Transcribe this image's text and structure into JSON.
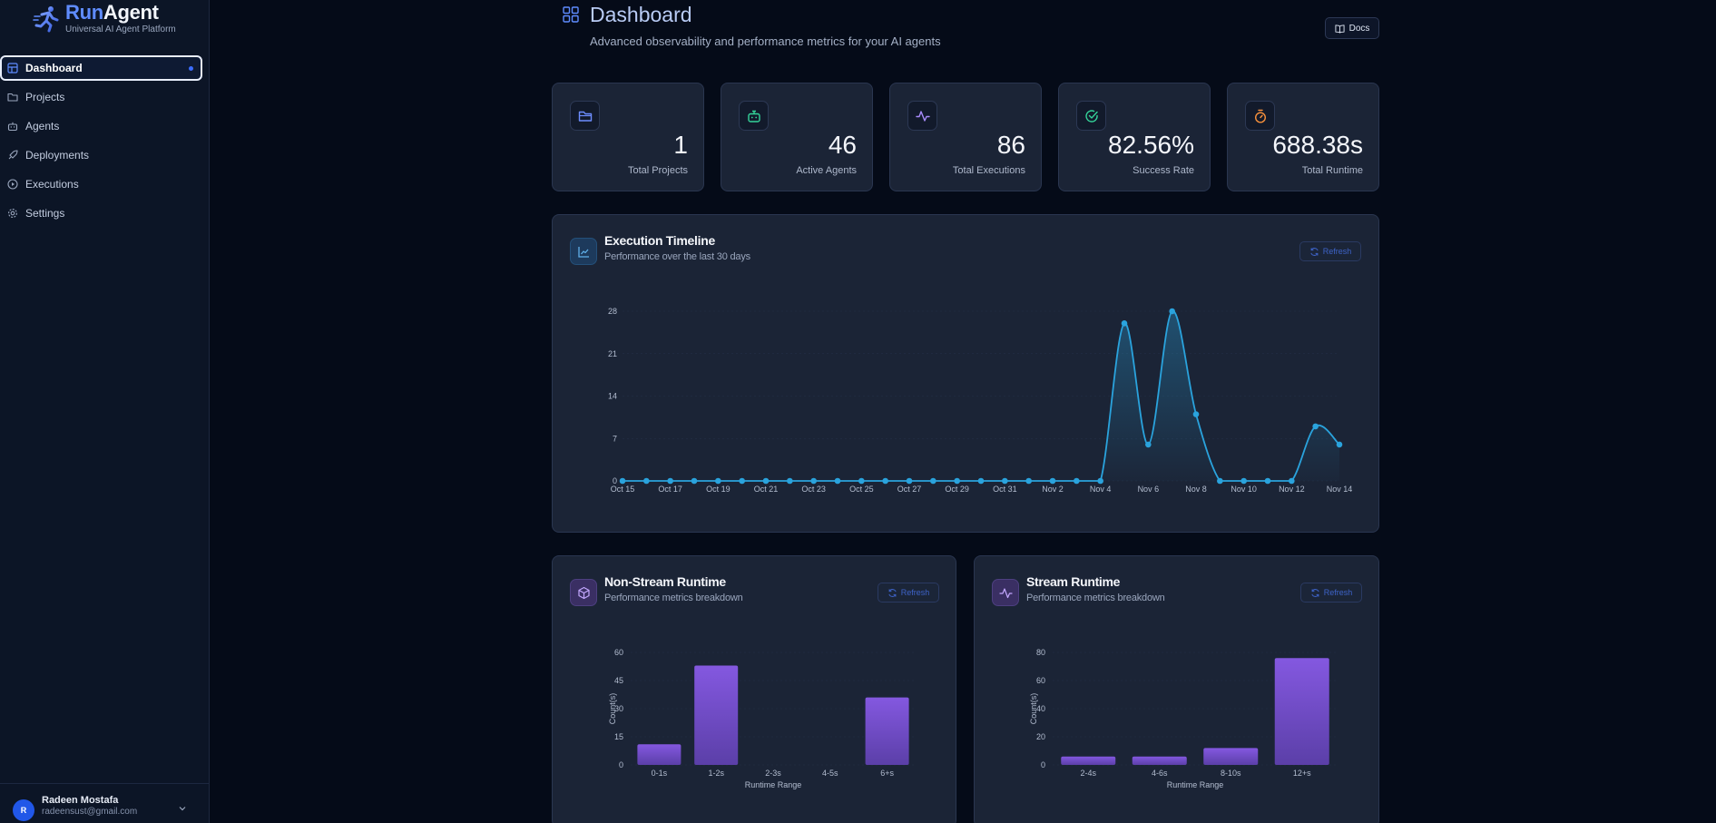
{
  "brand": {
    "name_part1": "Run",
    "name_part2": "Agent",
    "subtitle": "Universal AI Agent Platform"
  },
  "sidebar": {
    "items": [
      {
        "label": "Dashboard",
        "icon": "dashboard-icon",
        "active": true
      },
      {
        "label": "Projects",
        "icon": "folder-icon"
      },
      {
        "label": "Agents",
        "icon": "bot-icon"
      },
      {
        "label": "Deployments",
        "icon": "rocket-icon"
      },
      {
        "label": "Executions",
        "icon": "play-circle-icon"
      },
      {
        "label": "Settings",
        "icon": "gear-icon"
      }
    ],
    "user": {
      "initial": "R",
      "name": "Radeen Mostafa",
      "email": "radeensust@gmail.com"
    }
  },
  "header": {
    "title": "Dashboard",
    "subtitle": "Advanced observability and performance metrics for your AI agents",
    "docs_label": "Docs"
  },
  "stats": [
    {
      "value": "1",
      "label": "Total Projects",
      "icon": "folder-icon",
      "color": "#6d8dff"
    },
    {
      "value": "46",
      "label": "Active Agents",
      "icon": "bot-icon",
      "color": "#34d399"
    },
    {
      "value": "86",
      "label": "Total Executions",
      "icon": "activity-icon",
      "color": "#a78bfa"
    },
    {
      "value": "82.56%",
      "label": "Success Rate",
      "icon": "check-circle-icon",
      "color": "#34d399"
    },
    {
      "value": "688.38s",
      "label": "Total Runtime",
      "icon": "timer-icon",
      "color": "#fb923c"
    }
  ],
  "timeline": {
    "title": "Execution Timeline",
    "subtitle": "Performance over the last 30 days",
    "refresh_label": "Refresh"
  },
  "non_stream": {
    "title": "Non-Stream Runtime",
    "subtitle": "Performance metrics breakdown",
    "refresh_label": "Refresh"
  },
  "stream": {
    "title": "Stream Runtime",
    "subtitle": "Performance metrics breakdown",
    "refresh_label": "Refresh"
  },
  "colors": {
    "accent": "#3b6cff",
    "line": "#2aa3dd",
    "bar": "#7c54d4"
  },
  "chart_data": [
    {
      "type": "line",
      "title": "Execution Timeline",
      "x": [
        "Oct 15",
        "Oct 16",
        "Oct 17",
        "Oct 18",
        "Oct 19",
        "Oct 20",
        "Oct 21",
        "Oct 22",
        "Oct 23",
        "Oct 24",
        "Oct 25",
        "Oct 26",
        "Oct 27",
        "Oct 28",
        "Oct 29",
        "Oct 30",
        "Oct 31",
        "Nov 1",
        "Nov 2",
        "Nov 3",
        "Nov 4",
        "Nov 5",
        "Nov 6",
        "Nov 7",
        "Nov 8",
        "Nov 9",
        "Nov 10",
        "Nov 11",
        "Nov 12",
        "Nov 13",
        "Nov 14"
      ],
      "values": [
        0,
        0,
        0,
        0,
        0,
        0,
        0,
        0,
        0,
        0,
        0,
        0,
        0,
        0,
        0,
        0,
        0,
        0,
        0,
        0,
        0,
        26,
        6,
        28,
        11,
        0,
        0,
        0,
        0,
        9,
        6
      ],
      "xticks": [
        "Oct 15",
        "Oct 17",
        "Oct 19",
        "Oct 21",
        "Oct 23",
        "Oct 25",
        "Oct 27",
        "Oct 29",
        "Oct 31",
        "Nov 2",
        "Nov 4",
        "Nov 6",
        "Nov 8",
        "Nov 10",
        "Nov 12",
        "Nov 14"
      ],
      "yticks": [
        0,
        7,
        14,
        21,
        28
      ],
      "ylim": [
        0,
        28
      ]
    },
    {
      "type": "bar",
      "title": "Non-Stream Runtime",
      "categories": [
        "0-1s",
        "1-2s",
        "2-3s",
        "4-5s",
        "6+s"
      ],
      "values": [
        11,
        53,
        0,
        0,
        36
      ],
      "xlabel": "Runtime Range",
      "ylabel": "Count(s)",
      "yticks": [
        0,
        15,
        30,
        45,
        60
      ],
      "ylim": [
        0,
        60
      ]
    },
    {
      "type": "bar",
      "title": "Stream Runtime",
      "categories": [
        "2-4s",
        "4-6s",
        "8-10s",
        "12+s"
      ],
      "values": [
        6,
        6,
        12,
        76
      ],
      "xlabel": "Runtime Range",
      "ylabel": "Count(s)",
      "yticks": [
        0,
        20,
        40,
        60,
        80
      ],
      "ylim": [
        0,
        80
      ]
    }
  ]
}
